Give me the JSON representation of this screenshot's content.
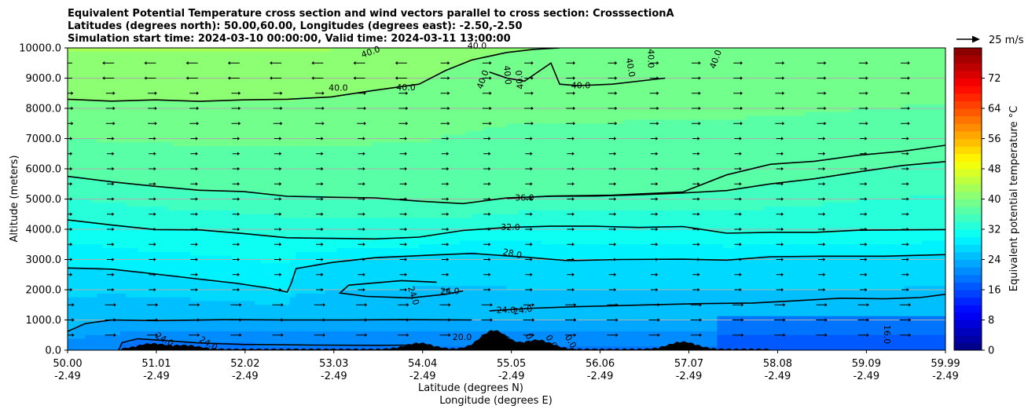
{
  "chart_data": {
    "type": "contourf",
    "title_lines": [
      "Equivalent Potential Temperature cross section and wind vectors parallel to cross section: CrosssectionA",
      "Latitudes (degrees north): 50.00,60.00, Longitudes (degrees east): -2.50,-2.50",
      "Simulation start time: 2024-03-10 00:00:00, Valid time: 2024-03-11 13:00:00"
    ],
    "ylabel": "Altitude (meters)",
    "xlabel_lines": [
      "Latitude (degrees N)",
      "Longitude (degrees E)"
    ],
    "ylim": [
      0,
      10000
    ],
    "y_ticks": [
      "0.0",
      "1000.0",
      "2000.0",
      "3000.0",
      "4000.0",
      "5000.0",
      "6000.0",
      "7000.0",
      "8000.0",
      "9000.0",
      "10000.0"
    ],
    "x_ticks": [
      {
        "lat": "50.00",
        "lon": "-2.49"
      },
      {
        "lat": "51.01",
        "lon": "-2.49"
      },
      {
        "lat": "52.02",
        "lon": "-2.49"
      },
      {
        "lat": "53.03",
        "lon": "-2.49"
      },
      {
        "lat": "54.04",
        "lon": "-2.49"
      },
      {
        "lat": "55.05",
        "lon": "-2.49"
      },
      {
        "lat": "56.06",
        "lon": "-2.49"
      },
      {
        "lat": "57.07",
        "lon": "-2.49"
      },
      {
        "lat": "58.08",
        "lon": "-2.49"
      },
      {
        "lat": "59.09",
        "lon": "-2.49"
      },
      {
        "lat": "59.99",
        "lon": "-2.49"
      }
    ],
    "grid": "horizontal",
    "colorbar": {
      "label": "Equivalent potential temperature $^\\circ$C",
      "label_display": "Equivalent potential temperature °C",
      "range": [
        0,
        80
      ],
      "ticks": [
        "0",
        "8",
        "16",
        "24",
        "32",
        "40",
        "48",
        "56",
        "64",
        "72"
      ],
      "colormap": "jet"
    },
    "quiver_key": "25 m/s",
    "contour_lines": [
      {
        "value": 20,
        "label": "20.0",
        "points": [
          [
            50.58,
            0
          ],
          [
            50.62,
            250
          ],
          [
            50.8,
            380
          ],
          [
            51.1,
            320
          ],
          [
            51.5,
            240
          ],
          [
            52.0,
            190
          ],
          [
            52.8,
            170
          ],
          [
            53.5,
            160
          ],
          [
            54.0,
            170
          ]
        ]
      },
      {
        "value": 24,
        "label": "24.0",
        "points": [
          [
            50.0,
            620
          ],
          [
            50.2,
            880
          ],
          [
            50.5,
            1000
          ],
          [
            51.0,
            980
          ],
          [
            51.8,
            1010
          ],
          [
            52.5,
            1000
          ],
          [
            53.2,
            1000
          ],
          [
            53.8,
            1010
          ],
          [
            54.6,
            1000
          ]
        ]
      },
      {
        "value": 24,
        "label": "24.0",
        "points": [
          [
            54.8,
            1300
          ],
          [
            55.3,
            1390
          ],
          [
            55.8,
            1440
          ],
          [
            56.5,
            1490
          ],
          [
            57.2,
            1540
          ],
          [
            57.8,
            1560
          ],
          [
            58.3,
            1640
          ],
          [
            58.8,
            1720
          ],
          [
            59.3,
            1700
          ],
          [
            59.7,
            1740
          ],
          [
            59.99,
            1850
          ]
        ]
      },
      {
        "value": 24,
        "label": "24.0",
        "points": [
          [
            54.2,
            2250
          ],
          [
            53.8,
            2300
          ],
          [
            53.2,
            2150
          ],
          [
            53.1,
            1890
          ],
          [
            53.4,
            1780
          ],
          [
            53.9,
            1730
          ],
          [
            54.3,
            1850
          ],
          [
            54.5,
            1960
          ]
        ]
      },
      {
        "value": 28,
        "label": "28.0",
        "points": [
          [
            50.0,
            2720
          ],
          [
            50.5,
            2680
          ],
          [
            51.0,
            2520
          ],
          [
            51.5,
            2350
          ],
          [
            51.9,
            2220
          ],
          [
            52.3,
            2050
          ],
          [
            52.5,
            1920
          ],
          [
            52.55,
            2250
          ],
          [
            52.6,
            2700
          ],
          [
            53.0,
            2900
          ],
          [
            53.5,
            3060
          ],
          [
            54.1,
            3140
          ],
          [
            54.6,
            3200
          ],
          [
            55.2,
            3080
          ],
          [
            55.7,
            2960
          ],
          [
            56.3,
            3000
          ],
          [
            57.0,
            3010
          ],
          [
            57.5,
            2980
          ],
          [
            58.0,
            3090
          ],
          [
            58.6,
            3110
          ],
          [
            59.3,
            3110
          ],
          [
            59.99,
            3160
          ]
        ]
      },
      {
        "value": 32,
        "label": "32.0",
        "points": [
          [
            50.0,
            4310
          ],
          [
            50.5,
            4140
          ],
          [
            51.0,
            3990
          ],
          [
            51.5,
            3980
          ],
          [
            52.0,
            3860
          ],
          [
            52.5,
            3720
          ],
          [
            53.0,
            3700
          ],
          [
            53.5,
            3680
          ],
          [
            54.0,
            3740
          ],
          [
            54.5,
            3960
          ],
          [
            55.0,
            4060
          ],
          [
            55.5,
            4100
          ],
          [
            56.0,
            4100
          ],
          [
            56.5,
            4060
          ],
          [
            57.0,
            4090
          ],
          [
            57.5,
            3870
          ],
          [
            58.0,
            3900
          ],
          [
            58.5,
            3900
          ],
          [
            59.0,
            3970
          ],
          [
            59.99,
            3990
          ]
        ]
      },
      {
        "value": 36,
        "label": "36.0",
        "points": [
          [
            50.0,
            5750
          ],
          [
            50.5,
            5570
          ],
          [
            51.0,
            5420
          ],
          [
            51.5,
            5290
          ],
          [
            52.0,
            5250
          ],
          [
            52.5,
            5090
          ],
          [
            53.0,
            5060
          ],
          [
            53.5,
            5040
          ],
          [
            54.0,
            4930
          ],
          [
            54.5,
            4850
          ],
          [
            55.0,
            5040
          ],
          [
            55.5,
            5090
          ],
          [
            56.0,
            5100
          ],
          [
            56.5,
            5140
          ],
          [
            57.0,
            5200
          ],
          [
            57.5,
            5280
          ],
          [
            58.0,
            5500
          ],
          [
            58.5,
            5670
          ],
          [
            59.0,
            5900
          ],
          [
            59.5,
            6110
          ],
          [
            59.99,
            6240
          ]
        ]
      },
      {
        "value": 36,
        "label": "",
        "points": [
          [
            55.0,
            5020
          ],
          [
            55.5,
            5100
          ],
          [
            56.2,
            5130
          ],
          [
            57.0,
            5230
          ],
          [
            57.5,
            5800
          ],
          [
            58.0,
            6150
          ],
          [
            58.5,
            6250
          ],
          [
            59.0,
            6450
          ],
          [
            59.5,
            6580
          ],
          [
            59.99,
            6780
          ]
        ]
      },
      {
        "value": 40,
        "label": "40.0",
        "points": [
          [
            50.0,
            8300
          ],
          [
            50.5,
            8240
          ],
          [
            51.0,
            8280
          ],
          [
            51.5,
            8230
          ],
          [
            52.0,
            8280
          ],
          [
            52.5,
            8300
          ],
          [
            53.0,
            8380
          ],
          [
            53.5,
            8600
          ],
          [
            54.0,
            8800
          ],
          [
            54.3,
            9250
          ],
          [
            54.6,
            9600
          ],
          [
            55.0,
            9850
          ],
          [
            55.3,
            9950
          ],
          [
            55.6,
            10000
          ]
        ]
      },
      {
        "value": 40,
        "label": "40.0",
        "points": [
          [
            54.8,
            9200
          ],
          [
            55.0,
            9000
          ],
          [
            55.2,
            8900
          ],
          [
            55.3,
            9100
          ],
          [
            55.5,
            9500
          ],
          [
            55.6,
            8800
          ],
          [
            55.8,
            8750
          ],
          [
            56.2,
            8800
          ],
          [
            56.8,
            9000
          ]
        ]
      }
    ],
    "contour_labels": [
      {
        "text": "40.0",
        "x": 53.45,
        "y": 9850,
        "rotate": -20
      },
      {
        "text": "40.0",
        "x": 53.08,
        "y": 8660,
        "rotate": 0
      },
      {
        "text": "40.0",
        "x": 53.85,
        "y": 8680,
        "rotate": 0
      },
      {
        "text": "40.0",
        "x": 54.66,
        "y": 10050,
        "rotate": 0
      },
      {
        "text": "40.0",
        "x": 54.73,
        "y": 8950,
        "rotate": -70
      },
      {
        "text": "40.0",
        "x": 55.0,
        "y": 9100,
        "rotate": 85
      },
      {
        "text": "40.0",
        "x": 55.15,
        "y": 8950,
        "rotate": -95
      },
      {
        "text": "40.0",
        "x": 55.84,
        "y": 8740,
        "rotate": 0
      },
      {
        "text": "40.0",
        "x": 56.4,
        "y": 9350,
        "rotate": 80
      },
      {
        "text": "40.0",
        "x": 56.63,
        "y": 9650,
        "rotate": 90
      },
      {
        "text": "40.0",
        "x": 57.38,
        "y": 9620,
        "rotate": -70
      },
      {
        "text": "36.0",
        "x": 55.2,
        "y": 5030,
        "rotate": 0
      },
      {
        "text": "32.0",
        "x": 55.04,
        "y": 4050,
        "rotate": 0
      },
      {
        "text": "28.0",
        "x": 55.06,
        "y": 3180,
        "rotate": 12
      },
      {
        "text": "24.0",
        "x": 54.35,
        "y": 1930,
        "rotate": 0
      },
      {
        "text": "24.0",
        "x": 53.93,
        "y": 1800,
        "rotate": 72
      },
      {
        "text": "24.0",
        "x": 54.99,
        "y": 1310,
        "rotate": 0
      },
      {
        "text": "24.0",
        "x": 55.18,
        "y": 1310,
        "rotate": -10
      },
      {
        "text": "24.0",
        "x": 51.1,
        "y": 340,
        "rotate": 30
      },
      {
        "text": "24.0",
        "x": 51.6,
        "y": 210,
        "rotate": 30
      },
      {
        "text": "20.0",
        "x": 54.49,
        "y": 420,
        "rotate": 0
      },
      {
        "text": "16.0",
        "x": 59.32,
        "y": 520,
        "rotate": 90
      },
      {
        "text": "0.0",
        "x": 55.27,
        "y": 330,
        "rotate": 60
      },
      {
        "text": "0.0",
        "x": 55.72,
        "y": 280,
        "rotate": 60
      },
      {
        "text": "0.0",
        "x": 55.5,
        "y": 280,
        "rotate": 60
      },
      {
        "text": "0.0",
        "x": 55.01,
        "y": 240,
        "rotate": 60
      }
    ],
    "terrain_peaks_m": [
      {
        "x": 50.95,
        "h": 180
      },
      {
        "x": 51.35,
        "h": 120
      },
      {
        "x": 54.0,
        "h": 200
      },
      {
        "x": 54.85,
        "h": 620
      },
      {
        "x": 55.35,
        "h": 300
      },
      {
        "x": 57.0,
        "h": 240
      }
    ]
  }
}
